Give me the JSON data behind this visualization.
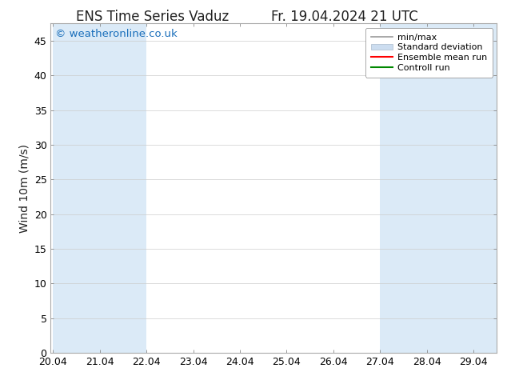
{
  "title": "ENS Time Series Vaduz",
  "title_right": "Fr. 19.04.2024 21 UTC",
  "ylabel": "Wind 10m (m/s)",
  "watermark": "© weatheronline.co.uk",
  "x_ticks_labels": [
    "20.04",
    "21.04",
    "22.04",
    "23.04",
    "24.04",
    "25.04",
    "26.04",
    "27.04",
    "28.04",
    "29.04"
  ],
  "x_ticks_pos": [
    0,
    1,
    2,
    3,
    4,
    5,
    6,
    7,
    8,
    9
  ],
  "xlim": [
    -0.05,
    9.5
  ],
  "ylim": [
    0,
    47.5
  ],
  "y_ticks": [
    0,
    5,
    10,
    15,
    20,
    25,
    30,
    35,
    40,
    45
  ],
  "bg_color": "#ffffff",
  "plot_bg_color": "#ffffff",
  "shaded_bands": [
    {
      "x_start": 0.0,
      "x_end": 1.0,
      "color": "#dbeaf7"
    },
    {
      "x_start": 1.0,
      "x_end": 2.0,
      "color": "#dbeaf7"
    },
    {
      "x_start": 7.0,
      "x_end": 8.0,
      "color": "#dbeaf7"
    },
    {
      "x_start": 8.0,
      "x_end": 9.0,
      "color": "#dbeaf7"
    },
    {
      "x_start": 9.0,
      "x_end": 9.6,
      "color": "#dbeaf7"
    }
  ],
  "legend_items": [
    {
      "label": "min/max",
      "color": "#aaaaaa",
      "style": "bar"
    },
    {
      "label": "Standard deviation",
      "color": "#ccddf0",
      "style": "fill"
    },
    {
      "label": "Ensemble mean run",
      "color": "#ff0000",
      "style": "line"
    },
    {
      "label": "Controll run",
      "color": "#008800",
      "style": "line"
    }
  ],
  "watermark_color": "#1a6fbb",
  "watermark_circle_color": "#1a6fbb",
  "grid_color": "#cccccc",
  "title_fontsize": 12,
  "tick_fontsize": 9,
  "ylabel_fontsize": 10,
  "legend_fontsize": 8
}
